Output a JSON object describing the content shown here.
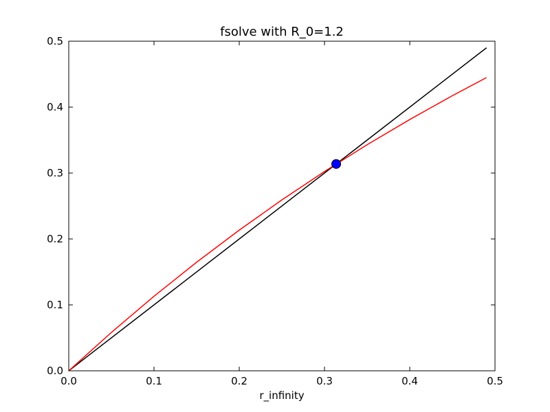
{
  "chart_data": {
    "type": "line",
    "title": "fsolve with R_0=1.2",
    "xlabel": "r_infinity",
    "ylabel": "",
    "xlim": [
      0.0,
      0.5
    ],
    "ylim": [
      0.0,
      0.5
    ],
    "xticks": [
      0.0,
      0.1,
      0.2,
      0.3,
      0.4,
      0.5
    ],
    "yticks": [
      0.0,
      0.1,
      0.2,
      0.3,
      0.4,
      0.5
    ],
    "xtick_labels": [
      "0.0",
      "0.1",
      "0.2",
      "0.3",
      "0.4",
      "0.5"
    ],
    "ytick_labels": [
      "0.0",
      "0.1",
      "0.2",
      "0.3",
      "0.4",
      "0.5"
    ],
    "grid": false,
    "legend": "none",
    "series": [
      {
        "color": "#000000",
        "x": [
          0.0,
          0.1,
          0.2,
          0.3,
          0.4,
          0.49
        ],
        "y": [
          0.0,
          0.1,
          0.2,
          0.3,
          0.4,
          0.49
        ]
      },
      {
        "color": "#ff0000",
        "x": [
          0.0,
          0.05,
          0.1,
          0.15,
          0.2,
          0.25,
          0.3,
          0.35,
          0.4,
          0.45,
          0.49
        ],
        "y": [
          0.0,
          0.0582,
          0.1131,
          0.1647,
          0.2134,
          0.2592,
          0.3023,
          0.343,
          0.3812,
          0.4173,
          0.4448
        ]
      }
    ],
    "points": [
      {
        "x": 0.3137,
        "y": 0.3137,
        "color": "#0000ff"
      }
    ]
  }
}
